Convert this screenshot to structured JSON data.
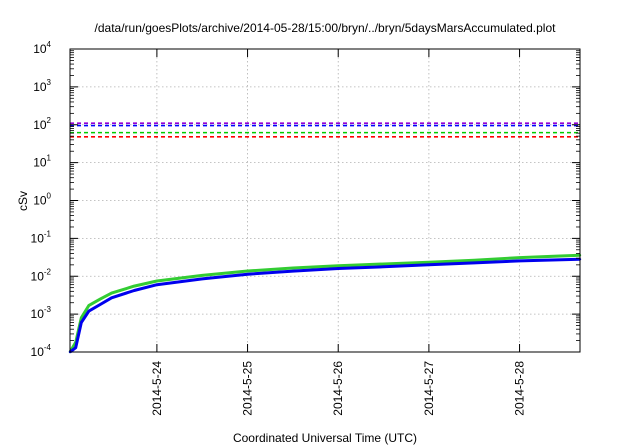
{
  "chart_data": {
    "type": "line",
    "title": "/data/run/goesPlots/archive/2014-05-28/15:00/bryn/../bryn/5daysMarsAccumulated.plot",
    "xlabel": "Coordinated Universal Time (UTC)",
    "ylabel": "cSv",
    "yscale": "log",
    "ylim": [
      0.0001,
      10000
    ],
    "xlim": [
      "2014-05-23 01:00",
      "2014-05-28 16:00"
    ],
    "y_ticks": [
      {
        "base": "10",
        "exp": "-4",
        "value": 0.0001
      },
      {
        "base": "10",
        "exp": "-3",
        "value": 0.001
      },
      {
        "base": "10",
        "exp": "-2",
        "value": 0.01
      },
      {
        "base": "10",
        "exp": "-1",
        "value": 0.1
      },
      {
        "base": "10",
        "exp": "0",
        "value": 1
      },
      {
        "base": "10",
        "exp": "1",
        "value": 10
      },
      {
        "base": "10",
        "exp": "2",
        "value": 100
      },
      {
        "base": "10",
        "exp": "3",
        "value": 1000
      },
      {
        "base": "10",
        "exp": "4",
        "value": 10000
      }
    ],
    "x_ticks": [
      "2014-5-24",
      "2014-5-25",
      "2014-5-26",
      "2014-5-27",
      "2014-5-28"
    ],
    "x_tick_dates": [
      "2014-05-24",
      "2014-05-25",
      "2014-05-26",
      "2014-05-27",
      "2014-05-28"
    ],
    "grid": true,
    "reference_lines": [
      {
        "value": 110,
        "color": "#9400d3"
      },
      {
        "value": 95,
        "color": "#0000ff"
      },
      {
        "value": 62,
        "color": "#00cc00"
      },
      {
        "value": 48,
        "color": "#ff0000"
      }
    ],
    "series": [
      {
        "color": "#33cc33",
        "x": [
          "2014-05-23 01:00",
          "2014-05-23 02:30",
          "2014-05-23 04:00",
          "2014-05-23 06:00",
          "2014-05-23 09:00",
          "2014-05-23 12:00",
          "2014-05-23 18:00",
          "2014-05-24 00:00",
          "2014-05-24 12:00",
          "2014-05-25 00:00",
          "2014-05-25 12:00",
          "2014-05-26 00:00",
          "2014-05-26 12:00",
          "2014-05-27 00:00",
          "2014-05-27 12:00",
          "2014-05-28 00:00",
          "2014-05-28 16:00"
        ],
        "y": [
          0.0001,
          0.00018,
          0.0008,
          0.0017,
          0.0025,
          0.0036,
          0.0055,
          0.0075,
          0.0105,
          0.0138,
          0.0165,
          0.019,
          0.021,
          0.0235,
          0.0265,
          0.031,
          0.036
        ]
      },
      {
        "color": "#0000ee",
        "x": [
          "2014-05-23 01:00",
          "2014-05-23 02:30",
          "2014-05-23 04:00",
          "2014-05-23 06:00",
          "2014-05-23 09:00",
          "2014-05-23 12:00",
          "2014-05-23 18:00",
          "2014-05-24 00:00",
          "2014-05-24 12:00",
          "2014-05-25 00:00",
          "2014-05-25 12:00",
          "2014-05-26 00:00",
          "2014-05-26 12:00",
          "2014-05-27 00:00",
          "2014-05-27 12:00",
          "2014-05-28 00:00",
          "2014-05-28 16:00"
        ],
        "y": [
          0.0001,
          0.00013,
          0.0006,
          0.0012,
          0.0018,
          0.0027,
          0.0042,
          0.006,
          0.0085,
          0.0113,
          0.0137,
          0.016,
          0.0178,
          0.02,
          0.0225,
          0.0255,
          0.028
        ]
      }
    ]
  }
}
